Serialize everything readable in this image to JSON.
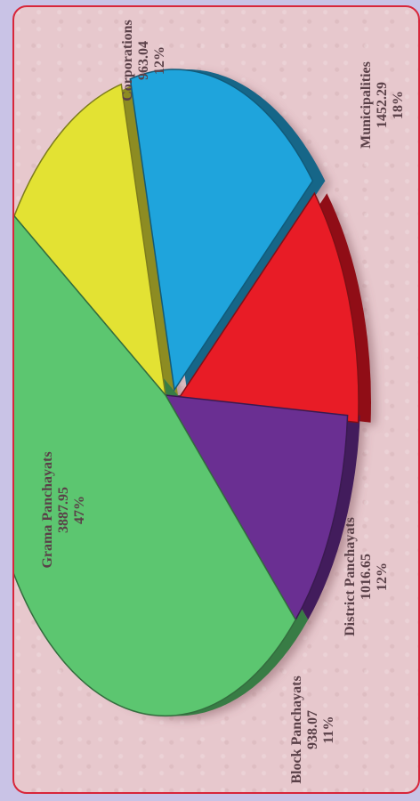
{
  "chart_data": {
    "type": "pie",
    "title": "",
    "slices": [
      {
        "label": "Corporations",
        "value": 963.04,
        "value_text": "963.04",
        "percent": "12%",
        "color": "#e3e233"
      },
      {
        "label": "Municipalities",
        "value": 1452.29,
        "value_text": "1452.29",
        "percent": "18%",
        "color": "#1fa4dc"
      },
      {
        "label": "District Panchayats",
        "value": 1016.65,
        "value_text": "1016.65",
        "percent": "12%",
        "color": "#e81c26"
      },
      {
        "label": "Block Panchayats",
        "value": 938.07,
        "value_text": "938.07",
        "percent": "11%",
        "color": "#6a2f92"
      },
      {
        "label": "Grama Panchayats",
        "value": 3887.95,
        "value_text": "3887.95",
        "percent": "47%",
        "color": "#5cc670"
      }
    ],
    "style": "3d-tilted",
    "orientation": "rotated-90-clockwise",
    "legend": "none"
  }
}
